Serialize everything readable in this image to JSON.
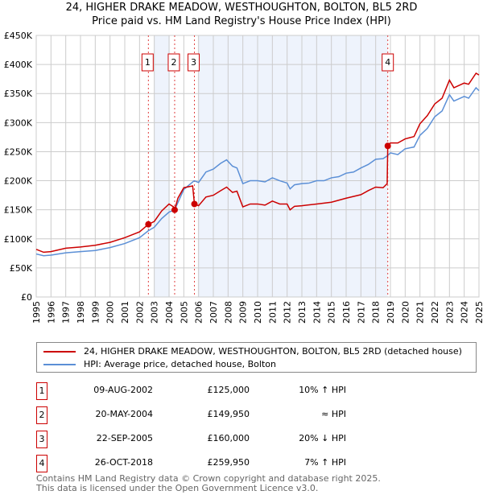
{
  "chart_data": {
    "type": "line",
    "title": "24, HIGHER DRAKE MEADOW, WESTHOUGHTON, BOLTON, BL5 2RD",
    "subtitle": "Price paid vs. HM Land Registry's House Price Index (HPI)",
    "xlim": [
      1995,
      2025
    ],
    "ylim": [
      0,
      450000
    ],
    "yticks": [
      0,
      50000,
      100000,
      150000,
      200000,
      250000,
      300000,
      350000,
      400000,
      450000
    ],
    "ytick_labels": [
      "£0",
      "£50K",
      "£100K",
      "£150K",
      "£200K",
      "£250K",
      "£300K",
      "£350K",
      "£400K",
      "£450K"
    ],
    "xticks": [
      1995,
      1996,
      1997,
      1998,
      1999,
      2000,
      2001,
      2002,
      2003,
      2004,
      2005,
      2006,
      2007,
      2008,
      2009,
      2010,
      2011,
      2012,
      2013,
      2014,
      2015,
      2016,
      2017,
      2018,
      2019,
      2020,
      2021,
      2022,
      2023,
      2024,
      2025
    ],
    "xtick_labels": [
      "1995",
      "1996",
      "1997",
      "1998",
      "1999",
      "2000",
      "2001",
      "2002",
      "2003",
      "2004",
      "2005",
      "2006",
      "2007",
      "2008",
      "2009",
      "2010",
      "2011",
      "2012",
      "2013",
      "2014",
      "2015",
      "2016",
      "2017",
      "2018",
      "2019",
      "2020",
      "2021",
      "2022",
      "2023",
      "2024",
      "2025"
    ],
    "grid": true,
    "shaded": [
      [
        2003,
        2004.05
      ],
      [
        2005.95,
        2018.82
      ]
    ],
    "series": [
      {
        "name": "24, HIGHER DRAKE MEADOW, WESTHOUGHTON, BOLTON, BL5 2RD (detached house)",
        "color": "#cc0000",
        "x": [
          1995,
          1995.5,
          1996,
          1997,
          1998,
          1999,
          2000,
          2001,
          2002,
          2002.6,
          2003,
          2003.5,
          2004,
          2004.3,
          2004.38,
          2004.6,
          2005,
          2005.6,
          2005.72,
          2006,
          2006.5,
          2007,
          2007.5,
          2007.9,
          2008.3,
          2008.6,
          2009,
          2009.5,
          2010,
          2010.5,
          2011,
          2011.5,
          2012,
          2012.2,
          2012.5,
          2013,
          2014,
          2015,
          2016,
          2017,
          2017.5,
          2018,
          2018.5,
          2018.78,
          2018.82,
          2019,
          2019.5,
          2020,
          2020.6,
          2021,
          2021.5,
          2022,
          2022.5,
          2023,
          2023.3,
          2024,
          2024.3,
          2024.8,
          2025
        ],
        "y": [
          82000,
          77000,
          78000,
          84000,
          86000,
          89000,
          94000,
          102000,
          112000,
          125000,
          130000,
          148000,
          160000,
          155000,
          149950,
          170000,
          188000,
          191000,
          160000,
          157000,
          172000,
          175000,
          183000,
          189000,
          180000,
          182000,
          155000,
          160000,
          160000,
          158000,
          165000,
          160000,
          160000,
          150000,
          156000,
          157000,
          160000,
          163000,
          170000,
          176000,
          183000,
          189000,
          188000,
          195000,
          259950,
          265000,
          265000,
          272000,
          276000,
          298000,
          312000,
          332000,
          342000,
          373000,
          360000,
          368000,
          366000,
          385000,
          382000
        ]
      },
      {
        "name": "HPI: Average price, detached house, Bolton",
        "color": "#5b8fd6",
        "x": [
          1995,
          1995.5,
          1996,
          1997,
          1998,
          1999,
          2000,
          2001,
          2002,
          2002.6,
          2003,
          2003.5,
          2004,
          2004.38,
          2005,
          2005.7,
          2006,
          2006.5,
          2007,
          2007.5,
          2007.9,
          2008.3,
          2008.6,
          2009,
          2009.5,
          2010,
          2010.5,
          2011,
          2011.5,
          2012,
          2012.2,
          2012.5,
          2013,
          2013.5,
          2014,
          2014.5,
          2015,
          2015.5,
          2016,
          2016.5,
          2017,
          2017.5,
          2018,
          2018.5,
          2018.8,
          2019,
          2019.5,
          2020,
          2020.6,
          2021,
          2021.5,
          2022,
          2022.5,
          2023,
          2023.3,
          2024,
          2024.3,
          2024.8,
          2025
        ],
        "y": [
          74000,
          71000,
          72000,
          76000,
          78000,
          80000,
          85000,
          92000,
          102000,
          114000,
          120000,
          135000,
          146000,
          150000,
          185000,
          200000,
          197000,
          215000,
          220000,
          230000,
          236000,
          225000,
          222000,
          195000,
          200000,
          200000,
          198000,
          205000,
          200000,
          196000,
          186000,
          193000,
          195000,
          196000,
          200000,
          200000,
          205000,
          207000,
          213000,
          215000,
          222000,
          228000,
          237000,
          238000,
          243000,
          248000,
          245000,
          255000,
          258000,
          278000,
          290000,
          310000,
          320000,
          348000,
          337000,
          345000,
          342000,
          360000,
          355000
        ]
      }
    ],
    "sales": [
      {
        "label": "1",
        "x": 2002.6,
        "y": 125000
      },
      {
        "label": "2",
        "x": 2004.38,
        "y": 149950
      },
      {
        "label": "3",
        "x": 2005.72,
        "y": 160000
      },
      {
        "label": "4",
        "x": 2018.82,
        "y": 259950
      }
    ]
  },
  "legend": {
    "items": [
      "24, HIGHER DRAKE MEADOW, WESTHOUGHTON, BOLTON, BL5 2RD (detached house)",
      "HPI: Average price, detached house, Bolton"
    ]
  },
  "transactions": [
    {
      "num": "1",
      "date": "09-AUG-2002",
      "price": "£125,000",
      "relation": "10% ↑ HPI"
    },
    {
      "num": "2",
      "date": "20-MAY-2004",
      "price": "£149,950",
      "relation": "≈ HPI"
    },
    {
      "num": "3",
      "date": "22-SEP-2005",
      "price": "£160,000",
      "relation": "20% ↓ HPI"
    },
    {
      "num": "4",
      "date": "26-OCT-2018",
      "price": "£259,950",
      "relation": "7% ↑ HPI"
    }
  ],
  "footer": {
    "line1": "Contains HM Land Registry data © Crown copyright and database right 2025.",
    "line2": "This data is licensed under the Open Government Licence v3.0."
  }
}
